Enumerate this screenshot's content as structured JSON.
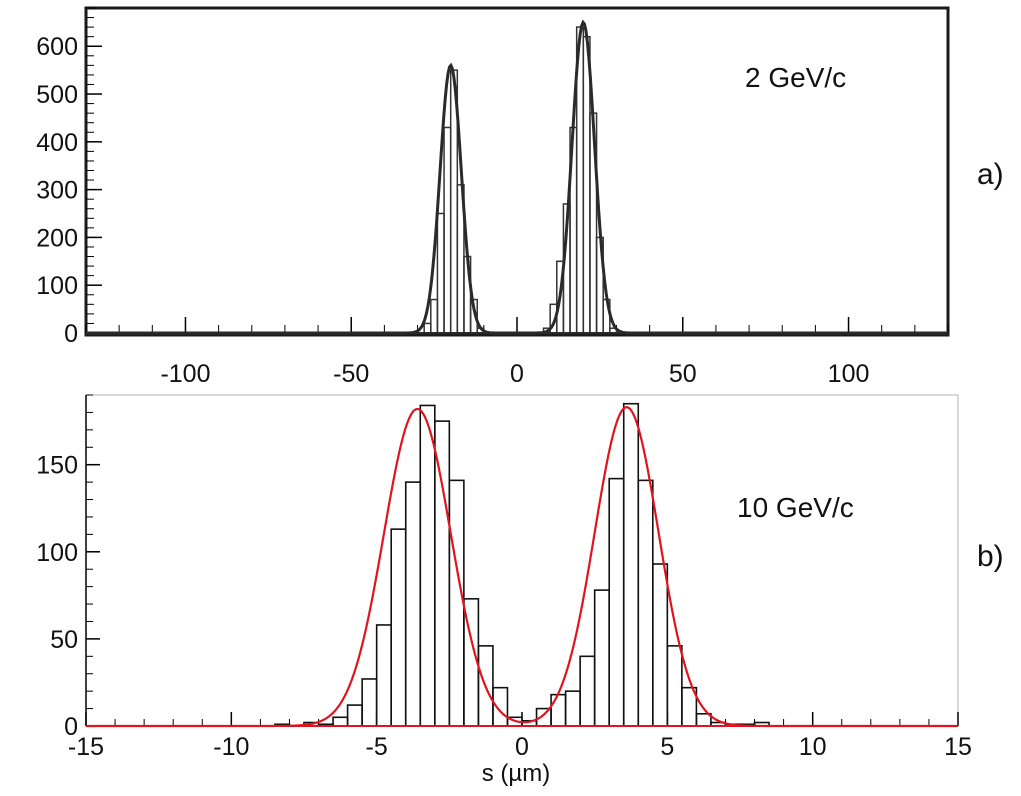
{
  "chart_data": [
    {
      "type": "histogram",
      "panel": "a)",
      "annotation": "2 GeV/c",
      "xlim": [
        -130,
        130
      ],
      "ylim": [
        0,
        680
      ],
      "x_ticks": [
        -100,
        -50,
        0,
        50,
        100
      ],
      "y_ticks": [
        0,
        100,
        200,
        300,
        400,
        500,
        600
      ],
      "bin_width": 2,
      "bins": [
        {
          "x": -30,
          "y": 0
        },
        {
          "x": -28,
          "y": 20
        },
        {
          "x": -26,
          "y": 70
        },
        {
          "x": -24,
          "y": 250
        },
        {
          "x": -22,
          "y": 430
        },
        {
          "x": -20,
          "y": 550
        },
        {
          "x": -18,
          "y": 310
        },
        {
          "x": -16,
          "y": 160
        },
        {
          "x": -14,
          "y": 70
        },
        {
          "x": -12,
          "y": 10
        },
        {
          "x": -10,
          "y": 0
        },
        {
          "x": 6,
          "y": 0
        },
        {
          "x": 8,
          "y": 10
        },
        {
          "x": 10,
          "y": 60
        },
        {
          "x": 12,
          "y": 150
        },
        {
          "x": 14,
          "y": 270
        },
        {
          "x": 16,
          "y": 430
        },
        {
          "x": 18,
          "y": 640
        },
        {
          "x": 20,
          "y": 620
        },
        {
          "x": 22,
          "y": 460
        },
        {
          "x": 24,
          "y": 200
        },
        {
          "x": 26,
          "y": 70
        },
        {
          "x": 28,
          "y": 10
        },
        {
          "x": 30,
          "y": 0
        }
      ],
      "fit": {
        "line_color": "#2a2a2a",
        "peaks": [
          {
            "amp": 560,
            "mean": -20,
            "sigma": 3.2
          },
          {
            "amp": 650,
            "mean": 20,
            "sigma": 3.4
          }
        ]
      }
    },
    {
      "type": "histogram",
      "panel": "b)",
      "annotation": "10 GeV/c",
      "xlabel": "s (µm)",
      "xlim": [
        -15,
        15
      ],
      "ylim": [
        0,
        190
      ],
      "x_ticks": [
        -15,
        -10,
        -5,
        0,
        5,
        10,
        15
      ],
      "y_ticks": [
        0,
        50,
        100,
        150
      ],
      "bin_width": 0.5,
      "bins": [
        {
          "x": -9,
          "y": 0
        },
        {
          "x": -8.5,
          "y": 1
        },
        {
          "x": -8,
          "y": 0
        },
        {
          "x": -7.5,
          "y": 2
        },
        {
          "x": -7,
          "y": 1
        },
        {
          "x": -6.5,
          "y": 5
        },
        {
          "x": -6,
          "y": 12
        },
        {
          "x": -5.5,
          "y": 27
        },
        {
          "x": -5,
          "y": 58
        },
        {
          "x": -4.5,
          "y": 113
        },
        {
          "x": -4,
          "y": 140
        },
        {
          "x": -3.5,
          "y": 184
        },
        {
          "x": -3,
          "y": 175
        },
        {
          "x": -2.5,
          "y": 141
        },
        {
          "x": -2,
          "y": 73
        },
        {
          "x": -1.5,
          "y": 46
        },
        {
          "x": -1,
          "y": 22
        },
        {
          "x": -0.5,
          "y": 5
        },
        {
          "x": 0,
          "y": 3
        },
        {
          "x": 0.5,
          "y": 10
        },
        {
          "x": 1,
          "y": 18
        },
        {
          "x": 1.5,
          "y": 20
        },
        {
          "x": 2,
          "y": 40
        },
        {
          "x": 2.5,
          "y": 78
        },
        {
          "x": 3,
          "y": 142
        },
        {
          "x": 3.5,
          "y": 185
        },
        {
          "x": 4,
          "y": 141
        },
        {
          "x": 4.5,
          "y": 93
        },
        {
          "x": 5,
          "y": 46
        },
        {
          "x": 5.5,
          "y": 22
        },
        {
          "x": 6,
          "y": 7
        },
        {
          "x": 6.5,
          "y": 2
        },
        {
          "x": 7,
          "y": 1
        },
        {
          "x": 7.5,
          "y": 1
        },
        {
          "x": 8,
          "y": 2
        },
        {
          "x": 8.5,
          "y": 0
        }
      ],
      "fit": {
        "line_color": "#e0141e",
        "peaks": [
          {
            "amp": 182,
            "mean": -3.6,
            "sigma": 1.15
          },
          {
            "amp": 183,
            "mean": 3.6,
            "sigma": 1.1
          }
        ]
      }
    }
  ]
}
